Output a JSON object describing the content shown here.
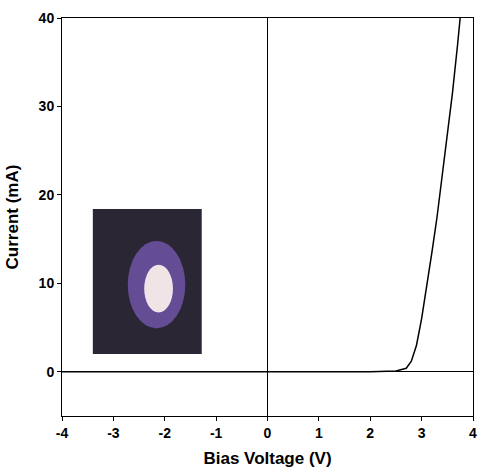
{
  "chart_data": {
    "type": "line",
    "x_label": "Bias Voltage (V)",
    "y_label": "Current (mA)",
    "x": [
      -4,
      -2,
      0,
      1,
      2,
      2.5,
      2.7,
      2.8,
      2.9,
      3.0,
      3.1,
      3.2,
      3.3,
      3.4,
      3.5,
      3.6,
      3.7,
      3.75
    ],
    "values": [
      0,
      0,
      0,
      0,
      0,
      0.1,
      0.4,
      1.2,
      3,
      6,
      9.5,
      13.5,
      17.5,
      22,
      26.5,
      31.5,
      37,
      40
    ],
    "color": "#000000",
    "xlim": [
      -4,
      4
    ],
    "xticks": [
      -4,
      -3,
      -2,
      -1,
      0,
      1,
      2,
      3,
      4
    ],
    "ylim": [
      -5,
      40
    ],
    "yticks": [
      0,
      10,
      20,
      30,
      40
    ],
    "grid": false
  }
}
